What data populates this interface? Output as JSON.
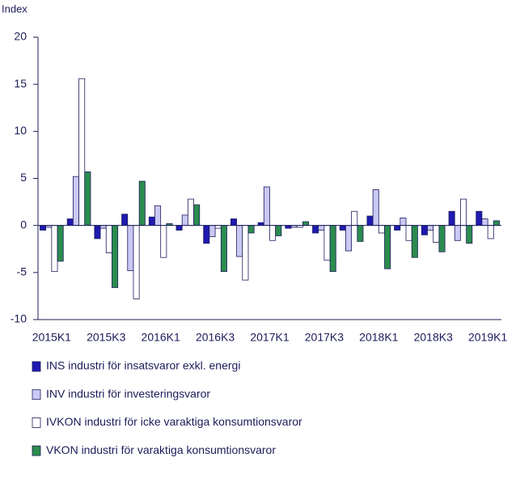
{
  "chart_data": {
    "type": "bar",
    "y_label": "Index",
    "categories": [
      "2015K1",
      null,
      "2015K3",
      null,
      "2016K1",
      null,
      "2016K3",
      null,
      "2017K1",
      null,
      "2017K3",
      null,
      "2018K1",
      null,
      "2018K3",
      null,
      "2019K1"
    ],
    "series": [
      {
        "name": "INS industri för insatsvaror exkl. energi",
        "color": "#1f1ab0",
        "values": [
          -0.5,
          0.7,
          -1.4,
          1.2,
          0.9,
          -0.5,
          -1.9,
          0.7,
          0.3,
          -0.3,
          -0.8,
          -0.5,
          1.0,
          -0.5,
          -1.0,
          1.5,
          1.5
        ]
      },
      {
        "name": "INV industri för investeringsvaror",
        "color": "#cac8f5",
        "values": [
          -0.2,
          5.2,
          -0.3,
          -4.8,
          2.1,
          1.1,
          -1.2,
          -3.3,
          4.1,
          -0.2,
          -0.5,
          -2.7,
          3.8,
          0.8,
          -0.5,
          -1.6,
          0.7
        ]
      },
      {
        "name": "IVKON industri för icke varaktiga konsumtionsvaror",
        "color": "#ffffff",
        "values": [
          -4.9,
          15.6,
          -2.9,
          -7.8,
          -3.4,
          2.8,
          -0.3,
          -5.8,
          -1.6,
          -0.2,
          -3.7,
          1.5,
          -0.8,
          -1.6,
          -1.8,
          2.8,
          -1.4
        ]
      },
      {
        "name": "VKON industri för varaktiga konsumtionsvaror",
        "color": "#2b8c4e",
        "values": [
          -3.8,
          5.7,
          -6.6,
          4.7,
          0.2,
          2.2,
          -4.9,
          -0.8,
          -1.1,
          0.4,
          -4.9,
          -1.7,
          -4.6,
          -3.4,
          -2.8,
          -1.9,
          0.5
        ]
      }
    ],
    "ylim": [
      -10,
      20
    ],
    "yticks": [
      -10,
      -5,
      0,
      5,
      10,
      15,
      20
    ]
  }
}
